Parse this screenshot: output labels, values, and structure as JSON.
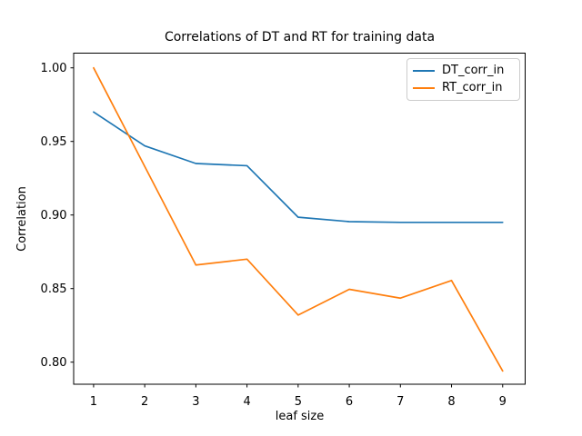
{
  "chart_data": {
    "type": "line",
    "title": "Correlations of DT and RT for training data",
    "xlabel": "leaf size",
    "ylabel": "Correlation",
    "x": [
      1,
      2,
      3,
      4,
      5,
      6,
      7,
      8,
      9
    ],
    "series": [
      {
        "name": "DT_corr_in",
        "color": "#1f77b4",
        "values": [
          0.97,
          0.947,
          0.935,
          0.9335,
          0.8985,
          0.8955,
          0.895,
          0.895,
          0.895
        ]
      },
      {
        "name": "RT_corr_in",
        "color": "#ff7f0e",
        "values": [
          1.0,
          0.933,
          0.866,
          0.87,
          0.832,
          0.8495,
          0.8435,
          0.8555,
          0.794
        ]
      }
    ],
    "xticks": {
      "values": [
        1,
        2,
        3,
        4,
        5,
        6,
        7,
        8,
        9
      ],
      "labels": [
        "1",
        "2",
        "3",
        "4",
        "5",
        "6",
        "7",
        "8",
        "9"
      ]
    },
    "yticks": {
      "values": [
        0.8,
        0.85,
        0.9,
        0.95,
        1.0
      ],
      "labels": [
        "0.80",
        "0.85",
        "0.90",
        "0.95",
        "1.00"
      ]
    },
    "xlim": [
      0.61,
      9.44
    ],
    "ylim": [
      0.785,
      1.01
    ],
    "grid": false,
    "legend": {
      "position": "upper right",
      "entries": [
        "DT_corr_in",
        "RT_corr_in"
      ]
    }
  }
}
